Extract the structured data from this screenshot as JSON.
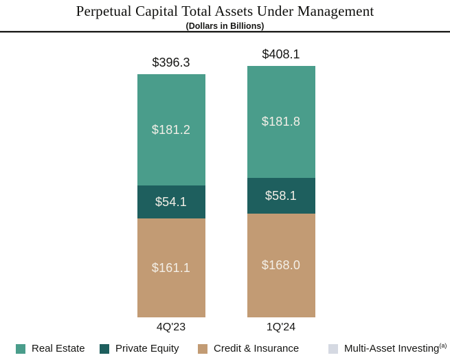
{
  "chart_data": {
    "type": "bar",
    "stacked": true,
    "title": "Perpetual Capital Total Assets Under Management",
    "subtitle": "(Dollars in Billions)",
    "xlabel": "",
    "ylabel": "",
    "axis": {
      "gridlines": false,
      "y_axis_visible": false,
      "x_axis_line_visible": false
    },
    "legend_position": "bottom",
    "categories": [
      "4Q'23",
      "1Q'24"
    ],
    "totals": [
      396.3,
      408.1
    ],
    "total_labels": [
      "$396.3",
      "$408.1"
    ],
    "series": [
      {
        "name": "Credit & Insurance",
        "color": "#c29b74",
        "values": [
          161.1,
          168.0
        ],
        "labels": [
          "$161.1",
          "$168.0"
        ]
      },
      {
        "name": "Private Equity",
        "color": "#1e5f5e",
        "values": [
          54.1,
          58.1
        ],
        "labels": [
          "$54.1",
          "$58.1"
        ]
      },
      {
        "name": "Real Estate",
        "color": "#4a9d8b",
        "values": [
          181.2,
          181.8
        ],
        "labels": [
          "$181.2",
          "$181.8"
        ]
      }
    ],
    "legend": [
      {
        "label": "Real Estate",
        "superscript": "",
        "color": "#4a9d8b"
      },
      {
        "label": "Private Equity",
        "superscript": "",
        "color": "#1e5f5e"
      },
      {
        "label": "Credit & Insurance",
        "superscript": "",
        "color": "#c29b74"
      },
      {
        "label": "Multi-Asset Investing",
        "superscript": "(a)",
        "color": "#d5d9e2"
      }
    ],
    "colors": {
      "bar_value_text": "#f3efe7",
      "axis_text": "#161614",
      "title_text": "#0e0e0c"
    }
  }
}
